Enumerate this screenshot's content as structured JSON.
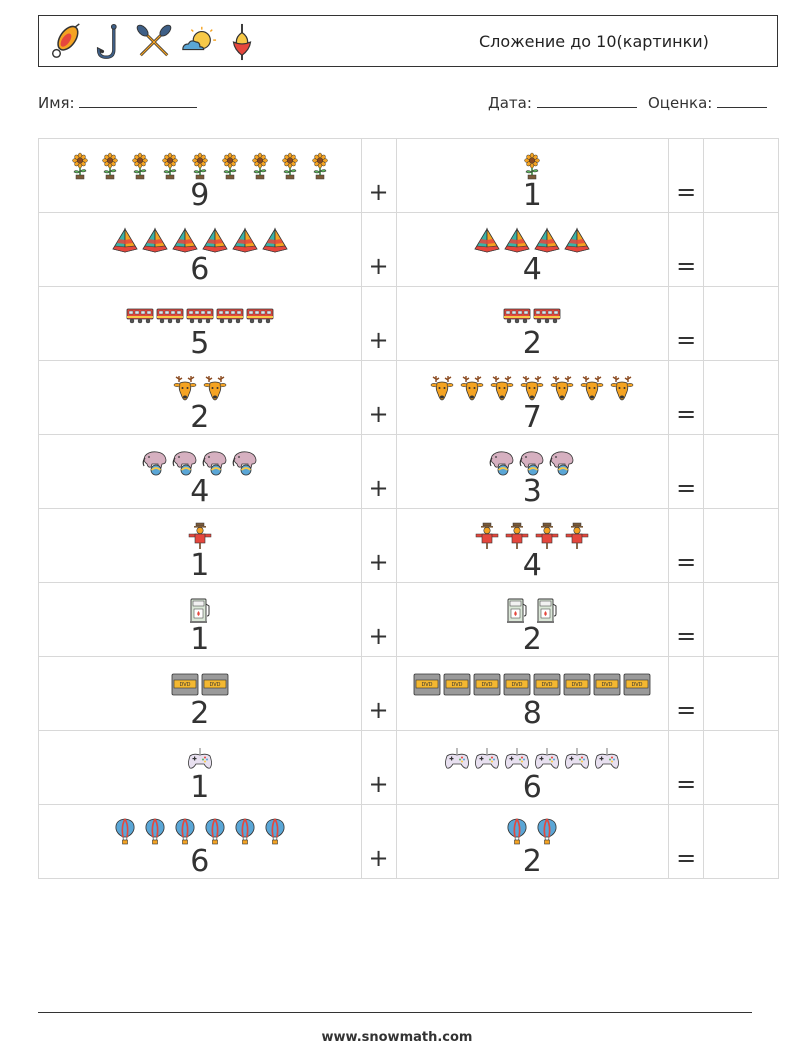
{
  "header": {
    "title": "Сложение до 10(картинки)",
    "icons": [
      "fishing-lure-icon",
      "fishing-hook-icon",
      "crossed-oars-icon",
      "sun-cloud-icon",
      "fishing-float-icon"
    ]
  },
  "fields": {
    "name_label": "Имя:",
    "date_label": "Дата:",
    "grade_label": "Оценка:"
  },
  "plus_sign": "+",
  "equals_sign": "=",
  "problems": [
    {
      "a": "9",
      "b": "1",
      "icon": "sunflower-icon"
    },
    {
      "a": "6",
      "b": "4",
      "icon": "pyramid-icon"
    },
    {
      "a": "5",
      "b": "2",
      "icon": "train-icon"
    },
    {
      "a": "2",
      "b": "7",
      "icon": "deer-icon"
    },
    {
      "a": "4",
      "b": "3",
      "icon": "circus-elephant-icon"
    },
    {
      "a": "1",
      "b": "4",
      "icon": "scarecrow-icon"
    },
    {
      "a": "1",
      "b": "2",
      "icon": "gas-pump-icon"
    },
    {
      "a": "2",
      "b": "8",
      "icon": "dvd-case-icon"
    },
    {
      "a": "1",
      "b": "6",
      "icon": "gamepad-icon"
    },
    {
      "a": "6",
      "b": "2",
      "icon": "hot-air-balloon-icon"
    }
  ],
  "footer": {
    "url": "www.snowmath.com"
  },
  "colors": {
    "orange": "#f4a322",
    "red": "#e5473d",
    "teal": "#3bb3a6",
    "blue": "#5aa6d6",
    "yellow": "#f7c948",
    "outline": "#333333"
  }
}
